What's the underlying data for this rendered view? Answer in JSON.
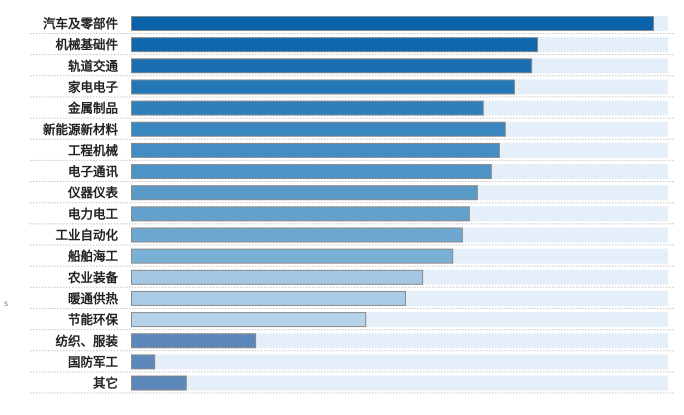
{
  "chart_data": {
    "type": "bar",
    "orientation": "horizontal",
    "title": "",
    "xlabel": "",
    "ylabel": "",
    "xlim": [
      0,
      100
    ],
    "grid": false,
    "legend": "none",
    "categories": [
      "汽车及零部件",
      "机械基础件",
      "轨道交通",
      "家电电子",
      "金属制品",
      "新能源新材料",
      "工程机械",
      "电子通讯",
      "仪器仪表",
      "电力电工",
      "工业自动化",
      "船舶海工",
      "农业装备",
      "暖通供热",
      "节能环保",
      "纺织、服装",
      "国防军工",
      "其它"
    ],
    "values": [
      97.4,
      75.8,
      74.7,
      71.5,
      65.7,
      69.8,
      68.7,
      67.2,
      64.6,
      63.1,
      61.8,
      60.0,
      54.4,
      51.2,
      43.8,
      23.3,
      4.5,
      10.4
    ],
    "colors": [
      "#0a62ab",
      "#0f67ae",
      "#1a6fb2",
      "#2477b6",
      "#2f7fba",
      "#3a86be",
      "#448dc2",
      "#4e93c5",
      "#5a9ac9",
      "#63a1cc",
      "#6ea8d0",
      "#7ab0d4",
      "#a3c6e3",
      "#a9cbe5",
      "#b7d3ea",
      "#5b87bb",
      "#5b87bb",
      "#5b87bb"
    ],
    "track_color": "#e5eff9",
    "stray_mark": "s"
  }
}
